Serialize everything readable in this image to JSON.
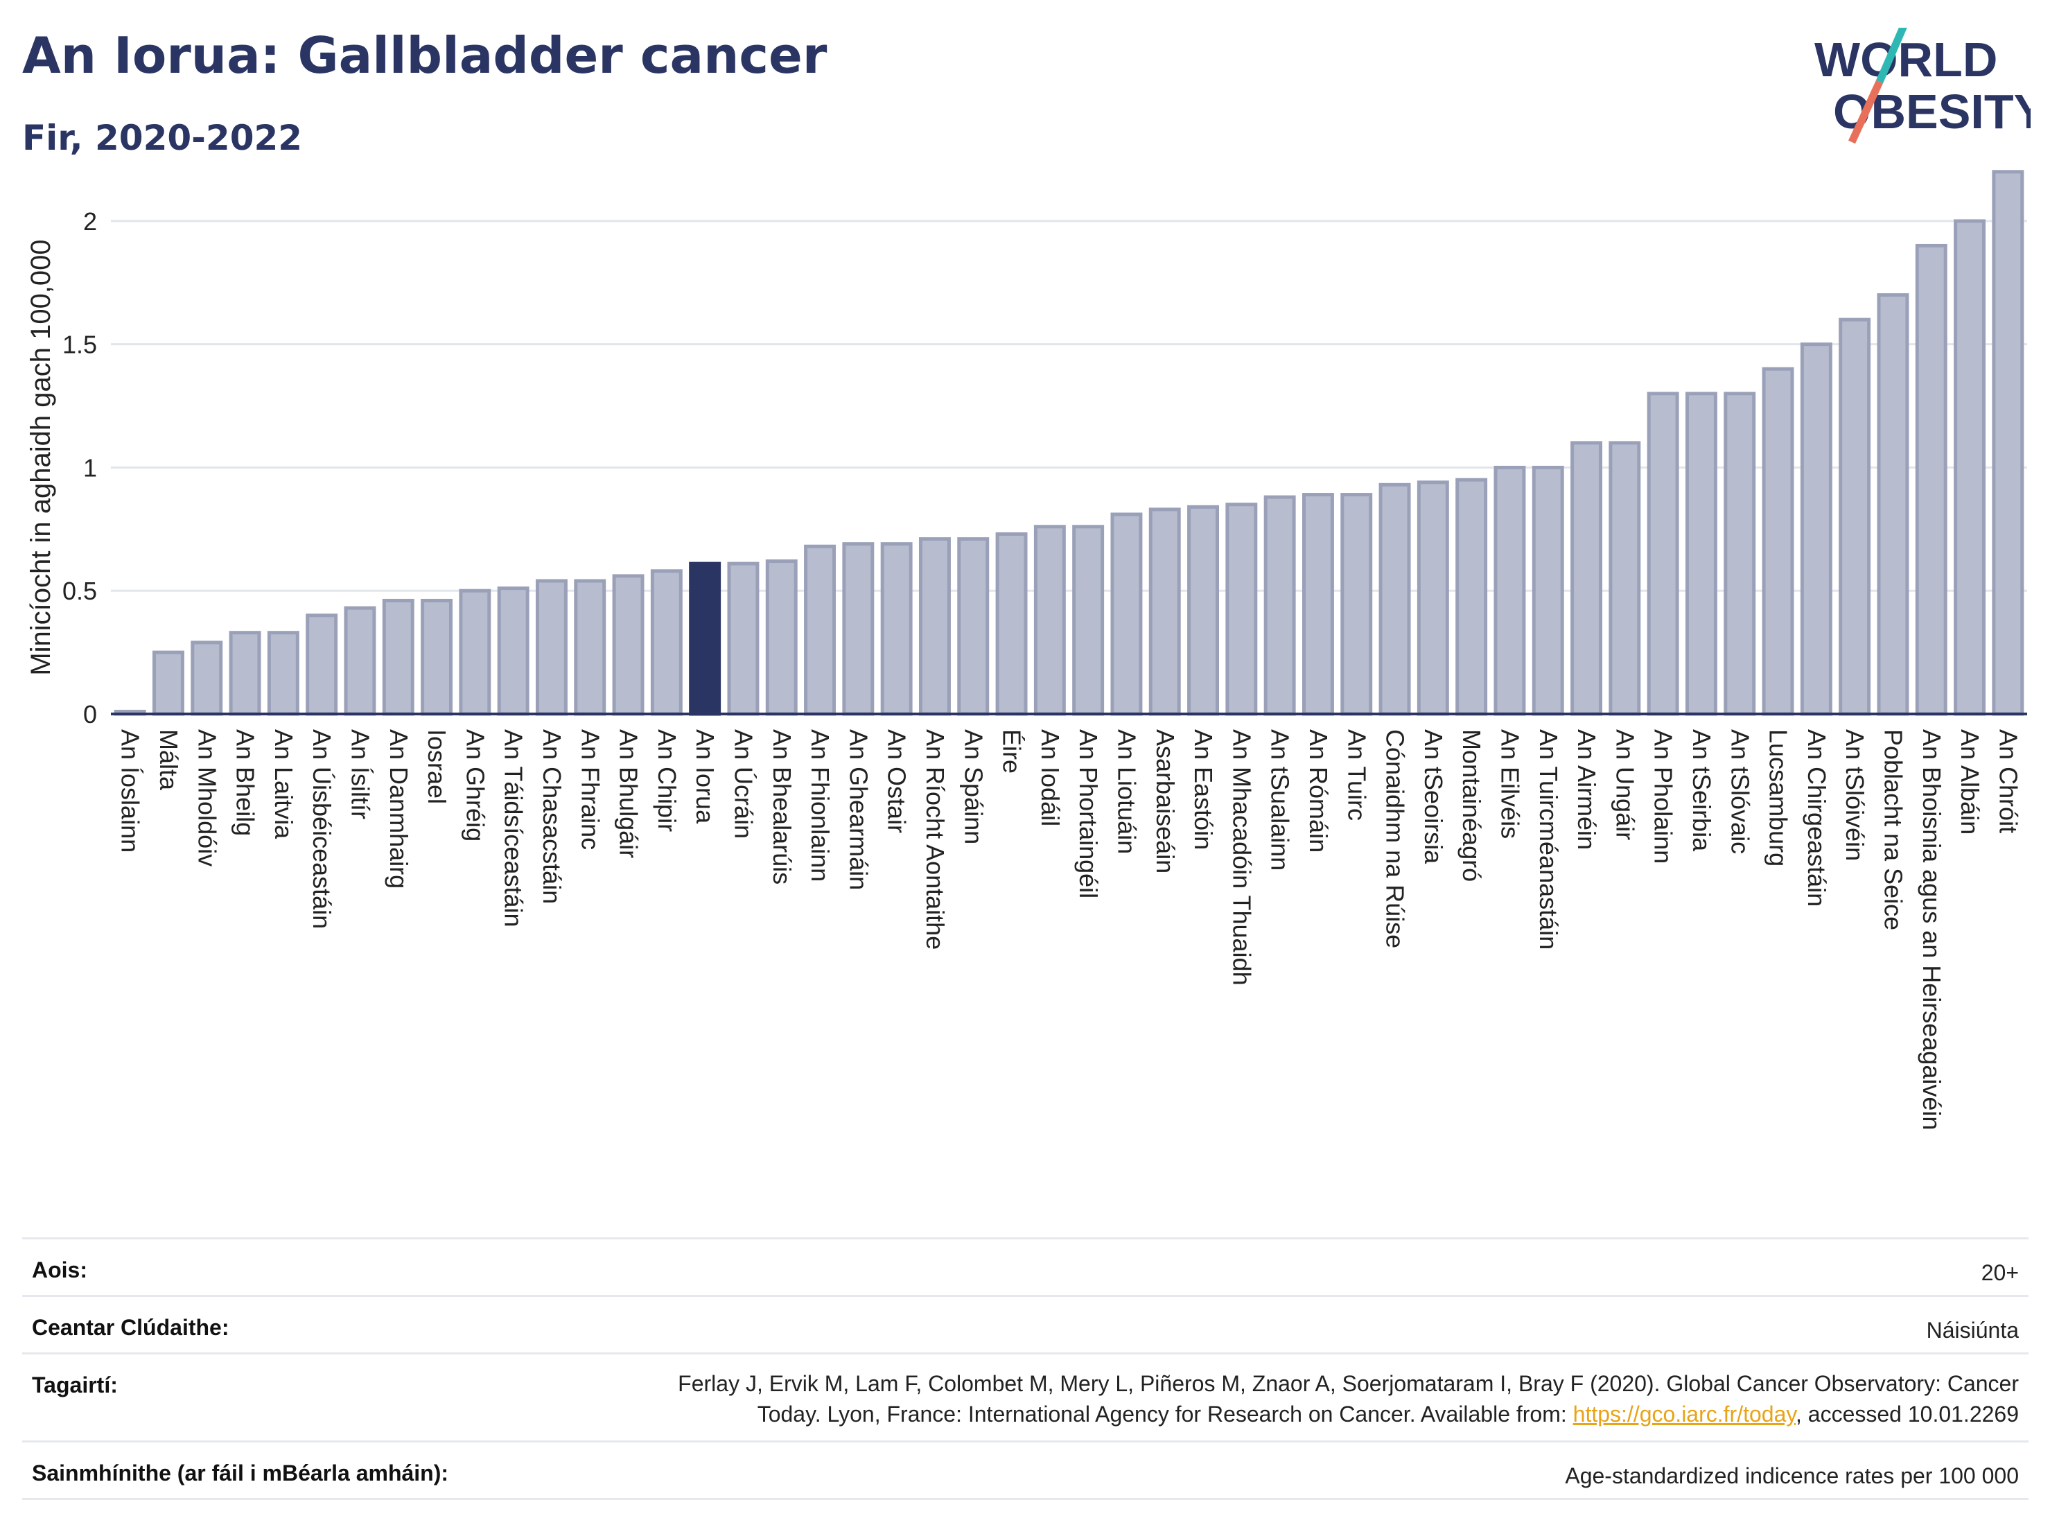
{
  "header": {
    "title": "An Iorua: Gallbladder cancer",
    "subtitle": "Fir, 2020-2022"
  },
  "logo": {
    "line1": "WORLD",
    "line2": "OBESITY",
    "accent_colors": [
      "#2fb8b3",
      "#e8705a"
    ]
  },
  "colors": {
    "bar": "#b7bdcf",
    "bar_stroke": "#9aa0b8",
    "highlight": "#2b3563",
    "grid": "#e3e5ec"
  },
  "chart_data": {
    "type": "bar",
    "title": "An Iorua: Gallbladder cancer",
    "subtitle": "Fir, 2020-2022",
    "xlabel": "",
    "ylabel": "Minicíocht in aghaidh gach 100,000",
    "ylim": [
      0,
      2.25
    ],
    "yticks": [
      0,
      0.5,
      1,
      1.5,
      2
    ],
    "ytick_labels": [
      "0",
      "0.5",
      "1",
      "1.5",
      "2"
    ],
    "grid": true,
    "highlight": "An Iorua",
    "categories": [
      "An Íoslainn",
      "Málta",
      "An Mholdóiv",
      "An Bheilg",
      "An Laitvia",
      "An Úisbéiceastáin",
      "An Ísiltír",
      "An Danmhairg",
      "Iosrael",
      "An Ghréig",
      "An Táidsíceastáin",
      "An Chasacstáin",
      "An Fhrainc",
      "An Bhulgáir",
      "An Chipir",
      "An Iorua",
      "An Úcráin",
      "An Bhealarúis",
      "An Fhionlainn",
      "An Ghearmáin",
      "An Ostair",
      "An Ríocht Aontaithe",
      "An Spáinn",
      "Éire",
      "An Iodáil",
      "An Phortaingéil",
      "An Liotuáin",
      "Asarbaiseáin",
      "An Eastóin",
      "An Mhacadóin Thuaidh",
      "An tSualainn",
      "An Rómáin",
      "An Tuirc",
      "Cónaidhm na Rúise",
      "An tSeoirsia",
      "Montainéagró",
      "An Eilvéis",
      "An Tuircméanastáin",
      "An Airméin",
      "An Ungáir",
      "An Pholainn",
      "An tSeirbia",
      "An tSlóvaic",
      "Lucsamburg",
      "An Chirgeastáin",
      "An tSlóivéin",
      "Poblacht na Seice",
      "An Bhoisnia agus an Heirseagaivéin",
      "An Albáin",
      "An Chróit"
    ],
    "values": [
      0.01,
      0.25,
      0.29,
      0.33,
      0.33,
      0.4,
      0.43,
      0.46,
      0.46,
      0.5,
      0.51,
      0.54,
      0.54,
      0.56,
      0.58,
      0.61,
      0.61,
      0.62,
      0.68,
      0.69,
      0.69,
      0.71,
      0.71,
      0.73,
      0.76,
      0.76,
      0.81,
      0.83,
      0.84,
      0.85,
      0.88,
      0.89,
      0.89,
      0.93,
      0.94,
      0.95,
      1.0,
      1.0,
      1.1,
      1.1,
      1.3,
      1.3,
      1.3,
      1.4,
      1.5,
      1.6,
      1.7,
      1.9,
      2.0,
      2.2
    ]
  },
  "meta": {
    "age_label": "Aois:",
    "age_value": "20+",
    "coverage_label": "Ceantar Clúdaithe:",
    "coverage_value": "Náisiúnta",
    "references_label": "Tagairtí:",
    "references_line1": "Ferlay J, Ervik M, Lam F, Colombet M, Mery L, Piñeros M, Znaor A, Soerjomataram I, Bray F (2020). Global Cancer Observatory: Cancer",
    "references_line2_pre": "Today. Lyon, France: International Agency for Research on Cancer. Available from: ",
    "references_link": "https://gco.iarc.fr/today",
    "references_line2_post": ", accessed 10.01.2269",
    "definitions_label": "Sainmhínithe (ar fáil i mBéarla amháin):",
    "definitions_value": "Age-standardized indicence rates per 100 000"
  }
}
